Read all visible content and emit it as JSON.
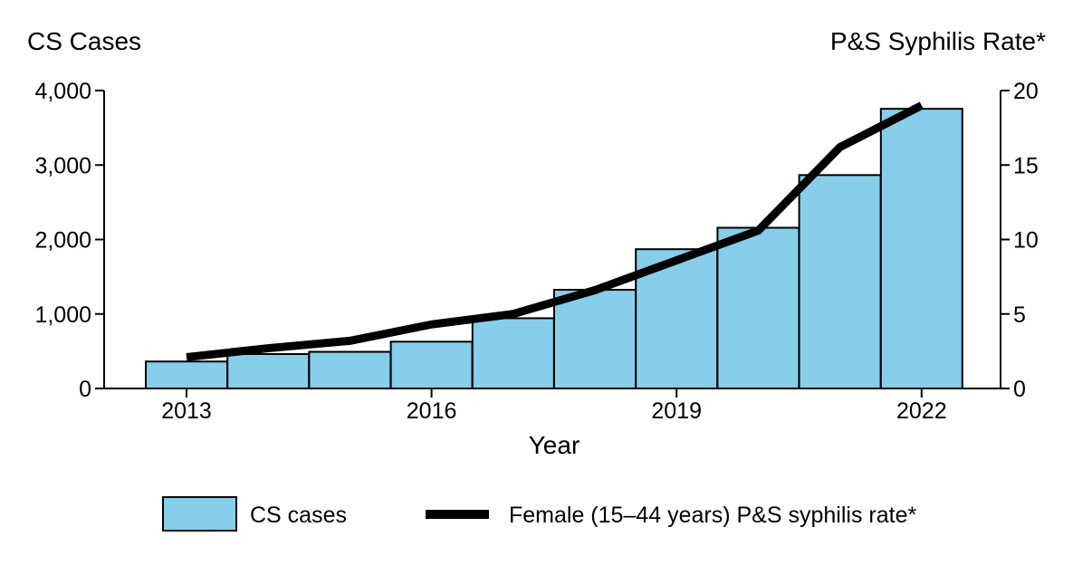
{
  "chart_data": {
    "type": "bar+line",
    "left_axis_title": "CS Cases",
    "right_axis_title": "P&S Syphilis Rate*",
    "xlabel": "Year",
    "categories": [
      2013,
      2014,
      2015,
      2016,
      2017,
      2018,
      2019,
      2020,
      2021,
      2022
    ],
    "x_tick_labels": [
      "2013",
      "2016",
      "2019",
      "2022"
    ],
    "left_ylim": [
      0,
      4000
    ],
    "left_ticks": [
      "0",
      "1,000",
      "2,000",
      "3,000",
      "4,000"
    ],
    "right_ylim": [
      0,
      20
    ],
    "right_ticks": [
      "0",
      "5",
      "10",
      "15",
      "20"
    ],
    "series": [
      {
        "name": "CS cases",
        "type": "bar",
        "axis": "left",
        "color": "#87CEEB",
        "values": [
          362,
          462,
          492,
          628,
          943,
          1325,
          1870,
          2158,
          2865,
          3755
        ]
      },
      {
        "name": "Female (15–44 years) P&S syphilis rate*",
        "type": "line",
        "axis": "right",
        "color": "#000000",
        "values": [
          2.1,
          2.7,
          3.2,
          4.3,
          5.0,
          6.6,
          8.6,
          10.6,
          16.2,
          19.0
        ]
      }
    ],
    "legend_position": "bottom",
    "grid": false
  }
}
